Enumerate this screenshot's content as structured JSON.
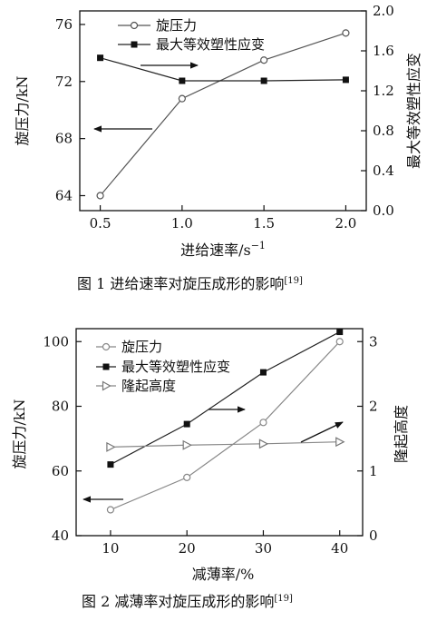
{
  "chart_data": [
    {
      "type": "line",
      "caption": "图 1   进给速率对旋压成形的影响",
      "caption_ref": "[19]",
      "xlabel": "进给速率/s",
      "xlabel_sup": "−1",
      "ylabel_left": "旋压力/kN",
      "ylabel_right": "最大等效塑性应变",
      "xlim": [
        0.375,
        2.125
      ],
      "ylim_left": [
        62.95,
        76.95
      ],
      "ylim_right": [
        0.0,
        2.0
      ],
      "x_ticks": [
        "0.5",
        "1.0",
        "1.5",
        "2.0"
      ],
      "y_left_ticks": [
        "64",
        "68",
        "72",
        "76"
      ],
      "y_right_ticks": [
        "0.0",
        "0.4",
        "0.8",
        "1.2",
        "1.6",
        "2.0"
      ],
      "series": [
        {
          "name": "旋压力",
          "axis": "left",
          "marker": "circle-open",
          "color": "#555555",
          "x": [
            0.5,
            1.0,
            1.5,
            2.0
          ],
          "y": [
            64.0,
            70.8,
            73.5,
            75.4
          ]
        },
        {
          "name": "最大等效塑性应变",
          "axis": "right",
          "marker": "square-filled",
          "color": "#222222",
          "x": [
            0.5,
            1.0,
            1.5,
            2.0
          ],
          "y": [
            1.53,
            1.3,
            1.3,
            1.31
          ]
        }
      ],
      "legend": "top-left"
    },
    {
      "type": "line",
      "caption": "图 2   减薄率对旋压成形的影响",
      "caption_ref": "[19]",
      "xlabel": "减薄率/%",
      "ylabel_left": "旋压力/kN",
      "ylabel_right": "隆起高度",
      "xlim": [
        5.5,
        43.0
      ],
      "ylim_left": [
        40,
        104
      ],
      "ylim_right": [
        0,
        3.2
      ],
      "x_ticks": [
        "10",
        "20",
        "30",
        "40"
      ],
      "y_left_ticks": [
        "40",
        "60",
        "80",
        "100"
      ],
      "y_right_ticks": [
        "0",
        "1",
        "2",
        "3"
      ],
      "series": [
        {
          "name": "旋压力",
          "axis": "left",
          "marker": "circle-open",
          "color": "#888888",
          "x": [
            10,
            20,
            30,
            40
          ],
          "y": [
            48.0,
            58.0,
            75.0,
            100.0
          ]
        },
        {
          "name": "最大等效塑性应变",
          "axis": "left",
          "marker": "square-filled",
          "color": "#222222",
          "x": [
            10,
            20,
            30,
            40
          ],
          "y": [
            62.0,
            74.5,
            90.5,
            103.0
          ]
        },
        {
          "name": "隆起高度",
          "axis": "right",
          "marker": "triangle-right-open",
          "color": "#888888",
          "x": [
            10,
            20,
            30,
            40
          ],
          "y": [
            1.37,
            1.4,
            1.42,
            1.45
          ]
        }
      ],
      "legend": "top-left"
    }
  ]
}
